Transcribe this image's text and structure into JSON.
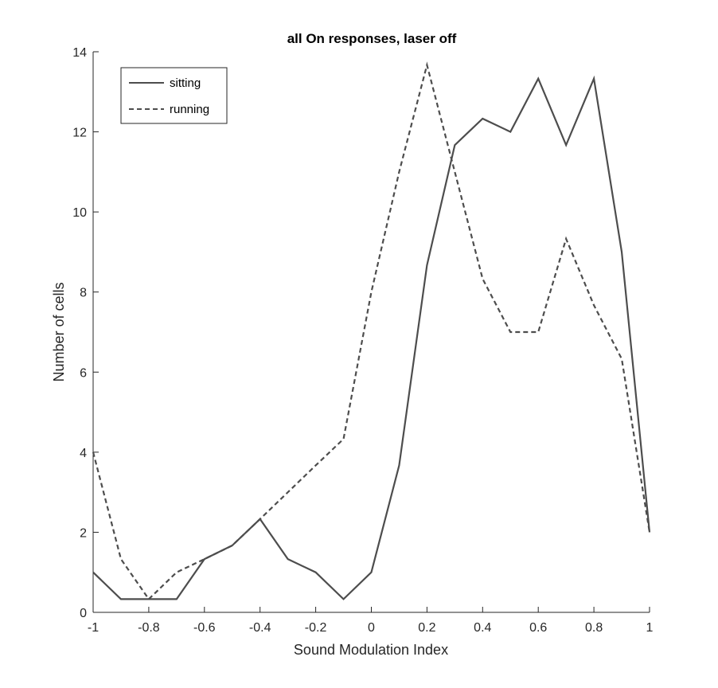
{
  "chart_data": {
    "type": "line",
    "title": "all On responses, laser off",
    "xlabel": "Sound Modulation Index",
    "ylabel": "Number of cells",
    "xlim": [
      -1,
      1
    ],
    "ylim": [
      0,
      14
    ],
    "xticks": [
      -1,
      -0.8,
      -0.6,
      -0.4,
      -0.2,
      0,
      0.2,
      0.4,
      0.6,
      0.8,
      1
    ],
    "yticks": [
      0,
      2,
      4,
      6,
      8,
      10,
      12,
      14
    ],
    "xtick_labels": [
      "-1",
      "-0.8",
      "-0.6",
      "-0.4",
      "-0.2",
      "0",
      "0.2",
      "0.4",
      "0.6",
      "0.8",
      "1"
    ],
    "ytick_labels": [
      "0",
      "2",
      "4",
      "6",
      "8",
      "10",
      "12",
      "14"
    ],
    "grid": false,
    "legend_position": "top-left",
    "x": [
      -1,
      -0.9,
      -0.8,
      -0.7,
      -0.6,
      -0.5,
      -0.4,
      -0.3,
      -0.2,
      -0.1,
      0,
      0.1,
      0.2,
      0.3,
      0.4,
      0.5,
      0.6,
      0.7,
      0.8,
      0.9,
      1
    ],
    "series": [
      {
        "name": "sitting",
        "line_style": "solid",
        "color": "#4d4d4d",
        "values": [
          1,
          0.33,
          0.33,
          0.33,
          1.33,
          1.67,
          2.33,
          1.33,
          1,
          0.33,
          1,
          3.67,
          8.67,
          11.67,
          12.33,
          12,
          13.33,
          11.67,
          13.33,
          9,
          2
        ]
      },
      {
        "name": "running",
        "line_style": "dashed",
        "color": "#4d4d4d",
        "values": [
          4,
          1.33,
          0.33,
          1,
          1.33,
          1.67,
          2.33,
          3,
          3.67,
          4.33,
          8,
          11,
          13.67,
          11,
          8.33,
          7,
          7,
          9.33,
          7.67,
          6.33,
          2
        ]
      }
    ]
  }
}
